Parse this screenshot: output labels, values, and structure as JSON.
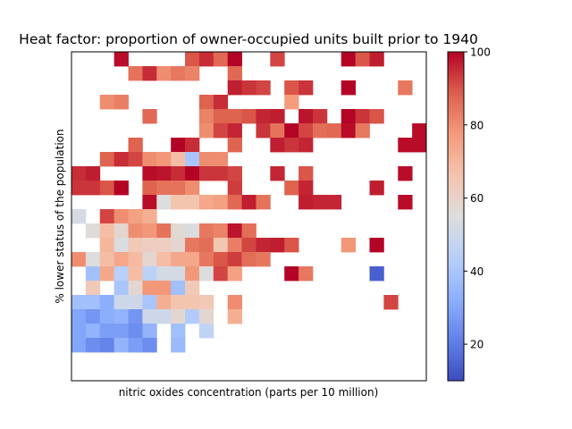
{
  "chart_data": {
    "type": "heatmap",
    "title": "Heat factor: proportion of owner-occupied units built prior to 1940",
    "xlabel": "nitric oxides concentration (parts per 10 million)",
    "ylabel": "% lower status of the population",
    "colormap": "coolwarm",
    "colorbar": {
      "vmin": 10,
      "vmax": 100,
      "ticks": [
        20,
        40,
        60,
        80,
        100
      ]
    },
    "x_ticks_shown": false,
    "y_ticks_shown": false,
    "grid": false,
    "rows": 23,
    "cols": 25,
    "cells": [
      [
        0,
        3,
        99
      ],
      [
        0,
        8,
        90
      ],
      [
        0,
        9,
        95
      ],
      [
        0,
        10,
        87
      ],
      [
        0,
        11,
        100
      ],
      [
        0,
        14,
        92
      ],
      [
        0,
        19,
        100
      ],
      [
        0,
        20,
        90
      ],
      [
        0,
        21,
        97
      ],
      [
        1,
        4,
        85
      ],
      [
        1,
        5,
        95
      ],
      [
        1,
        6,
        80
      ],
      [
        1,
        7,
        84
      ],
      [
        1,
        8,
        82
      ],
      [
        1,
        11,
        87
      ],
      [
        2,
        11,
        97
      ],
      [
        2,
        12,
        94
      ],
      [
        2,
        13,
        92
      ],
      [
        2,
        15,
        90
      ],
      [
        2,
        16,
        94
      ],
      [
        2,
        19,
        100
      ],
      [
        2,
        23,
        84
      ],
      [
        3,
        2,
        80
      ],
      [
        3,
        3,
        83
      ],
      [
        3,
        9,
        88
      ],
      [
        3,
        10,
        95
      ],
      [
        3,
        15,
        77
      ],
      [
        4,
        5,
        87
      ],
      [
        4,
        9,
        82
      ],
      [
        4,
        10,
        88
      ],
      [
        4,
        11,
        88
      ],
      [
        4,
        12,
        90
      ],
      [
        4,
        13,
        96
      ],
      [
        4,
        14,
        97
      ],
      [
        4,
        16,
        98
      ],
      [
        4,
        17,
        94
      ],
      [
        4,
        19,
        100
      ],
      [
        4,
        20,
        94
      ],
      [
        4,
        21,
        90
      ],
      [
        5,
        9,
        80
      ],
      [
        5,
        10,
        92
      ],
      [
        5,
        11,
        96
      ],
      [
        5,
        13,
        94
      ],
      [
        5,
        14,
        85
      ],
      [
        5,
        15,
        100
      ],
      [
        5,
        16,
        92
      ],
      [
        5,
        17,
        86
      ],
      [
        5,
        18,
        87
      ],
      [
        5,
        19,
        99
      ],
      [
        5,
        20,
        84
      ],
      [
        5,
        24,
        99
      ],
      [
        6,
        4,
        88
      ],
      [
        6,
        7,
        100
      ],
      [
        6,
        8,
        95
      ],
      [
        6,
        11,
        88
      ],
      [
        6,
        14,
        97
      ],
      [
        6,
        15,
        94
      ],
      [
        6,
        16,
        96
      ],
      [
        6,
        23,
        99
      ],
      [
        6,
        24,
        99
      ],
      [
        7,
        2,
        88
      ],
      [
        7,
        3,
        95
      ],
      [
        7,
        4,
        92
      ],
      [
        7,
        5,
        80
      ],
      [
        7,
        6,
        78
      ],
      [
        7,
        7,
        68
      ],
      [
        7,
        8,
        40
      ],
      [
        7,
        9,
        80
      ],
      [
        7,
        10,
        80
      ],
      [
        8,
        0,
        95
      ],
      [
        8,
        1,
        97
      ],
      [
        8,
        5,
        99
      ],
      [
        8,
        6,
        98
      ],
      [
        8,
        7,
        95
      ],
      [
        8,
        8,
        100
      ],
      [
        8,
        9,
        94
      ],
      [
        8,
        10,
        94
      ],
      [
        8,
        11,
        92
      ],
      [
        8,
        14,
        96
      ],
      [
        8,
        16,
        90
      ],
      [
        8,
        23,
        99
      ],
      [
        9,
        0,
        94
      ],
      [
        9,
        1,
        94
      ],
      [
        9,
        2,
        90
      ],
      [
        9,
        3,
        100
      ],
      [
        9,
        5,
        88
      ],
      [
        9,
        6,
        85
      ],
      [
        9,
        7,
        85
      ],
      [
        9,
        8,
        80
      ],
      [
        9,
        11,
        93
      ],
      [
        9,
        15,
        88
      ],
      [
        9,
        16,
        96
      ],
      [
        9,
        21,
        97
      ],
      [
        10,
        5,
        99
      ],
      [
        10,
        6,
        55
      ],
      [
        10,
        7,
        66
      ],
      [
        10,
        8,
        66
      ],
      [
        10,
        9,
        74
      ],
      [
        10,
        10,
        76
      ],
      [
        10,
        11,
        87
      ],
      [
        10,
        12,
        97
      ],
      [
        10,
        13,
        85
      ],
      [
        10,
        16,
        97
      ],
      [
        10,
        17,
        96
      ],
      [
        10,
        18,
        96
      ],
      [
        10,
        23,
        99
      ],
      [
        11,
        0,
        52
      ],
      [
        11,
        2,
        92
      ],
      [
        11,
        3,
        80
      ],
      [
        11,
        4,
        76
      ],
      [
        11,
        5,
        72
      ],
      [
        12,
        1,
        56
      ],
      [
        12,
        2,
        68
      ],
      [
        12,
        3,
        58
      ],
      [
        12,
        4,
        80
      ],
      [
        12,
        5,
        78
      ],
      [
        12,
        6,
        85
      ],
      [
        12,
        7,
        57
      ],
      [
        12,
        8,
        54
      ],
      [
        12,
        9,
        84
      ],
      [
        12,
        10,
        82
      ],
      [
        12,
        11,
        98
      ],
      [
        12,
        12,
        86
      ],
      [
        13,
        2,
        70
      ],
      [
        13,
        3,
        54
      ],
      [
        13,
        4,
        64
      ],
      [
        13,
        5,
        62
      ],
      [
        13,
        6,
        62
      ],
      [
        13,
        7,
        58
      ],
      [
        13,
        8,
        84
      ],
      [
        13,
        9,
        86
      ],
      [
        13,
        10,
        65
      ],
      [
        13,
        11,
        83
      ],
      [
        13,
        12,
        92
      ],
      [
        13,
        13,
        96
      ],
      [
        13,
        14,
        97
      ],
      [
        13,
        15,
        90
      ],
      [
        13,
        19,
        78
      ],
      [
        13,
        21,
        100
      ],
      [
        14,
        0,
        80
      ],
      [
        14,
        1,
        55
      ],
      [
        14,
        2,
        68
      ],
      [
        14,
        3,
        74
      ],
      [
        14,
        4,
        69
      ],
      [
        14,
        5,
        58
      ],
      [
        14,
        6,
        68
      ],
      [
        14,
        7,
        74
      ],
      [
        14,
        8,
        74
      ],
      [
        14,
        9,
        84
      ],
      [
        14,
        10,
        90
      ],
      [
        14,
        11,
        93
      ],
      [
        14,
        12,
        86
      ],
      [
        14,
        13,
        84
      ],
      [
        15,
        1,
        38
      ],
      [
        15,
        2,
        74
      ],
      [
        15,
        3,
        44
      ],
      [
        15,
        4,
        68
      ],
      [
        15,
        5,
        45
      ],
      [
        15,
        6,
        52
      ],
      [
        15,
        7,
        52
      ],
      [
        15,
        8,
        78
      ],
      [
        15,
        9,
        55
      ],
      [
        15,
        10,
        92
      ],
      [
        15,
        11,
        76
      ],
      [
        15,
        15,
        100
      ],
      [
        15,
        16,
        84
      ],
      [
        15,
        21,
        14
      ],
      [
        16,
        1,
        64
      ],
      [
        16,
        3,
        40
      ],
      [
        16,
        4,
        58
      ],
      [
        16,
        5,
        78
      ],
      [
        16,
        6,
        78
      ],
      [
        16,
        7,
        38
      ],
      [
        16,
        8,
        64
      ],
      [
        17,
        0,
        38
      ],
      [
        17,
        1,
        38
      ],
      [
        17,
        2,
        32
      ],
      [
        17,
        3,
        50
      ],
      [
        17,
        4,
        50
      ],
      [
        17,
        5,
        40
      ],
      [
        17,
        6,
        72
      ],
      [
        17,
        7,
        66
      ],
      [
        17,
        8,
        66
      ],
      [
        17,
        9,
        64
      ],
      [
        17,
        11,
        80
      ],
      [
        17,
        22,
        92
      ],
      [
        18,
        0,
        30
      ],
      [
        18,
        1,
        26
      ],
      [
        18,
        2,
        32
      ],
      [
        18,
        3,
        34
      ],
      [
        18,
        4,
        26
      ],
      [
        18,
        5,
        50
      ],
      [
        18,
        6,
        50
      ],
      [
        18,
        7,
        58
      ],
      [
        18,
        8,
        42
      ],
      [
        18,
        9,
        58
      ],
      [
        18,
        11,
        72
      ],
      [
        19,
        0,
        30
      ],
      [
        19,
        1,
        34
      ],
      [
        19,
        2,
        28
      ],
      [
        19,
        3,
        28
      ],
      [
        19,
        4,
        24
      ],
      [
        19,
        5,
        34
      ],
      [
        19,
        7,
        38
      ],
      [
        19,
        9,
        46
      ],
      [
        20,
        0,
        30
      ],
      [
        20,
        1,
        24
      ],
      [
        20,
        2,
        22
      ],
      [
        20,
        3,
        34
      ],
      [
        20,
        4,
        28
      ],
      [
        20,
        5,
        24
      ],
      [
        20,
        7,
        36
      ]
    ]
  }
}
